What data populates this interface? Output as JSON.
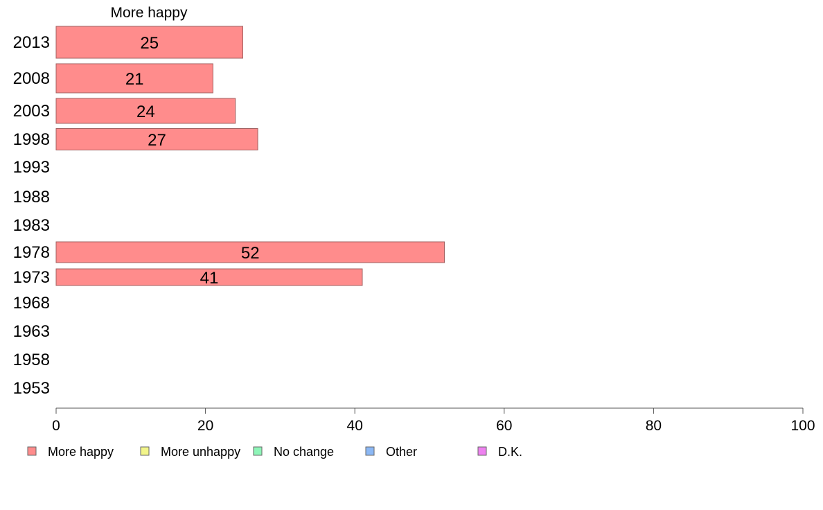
{
  "chart_data": {
    "type": "bar",
    "orientation": "horizontal",
    "series_title": "More happy",
    "categories": [
      "2013",
      "2008",
      "2003",
      "1998",
      "1993",
      "1988",
      "1983",
      "1978",
      "1973",
      "1968",
      "1963",
      "1958",
      "1953"
    ],
    "series": [
      {
        "name": "More happy",
        "values": [
          25,
          21,
          24,
          27,
          null,
          null,
          null,
          52,
          41,
          null,
          null,
          null,
          null
        ]
      }
    ],
    "data_labels": [
      "25",
      "21",
      "24",
      "27",
      "",
      "",
      "",
      "52",
      "41",
      "",
      "",
      "",
      ""
    ],
    "xlim": [
      0,
      100
    ],
    "x_ticks": [
      0,
      20,
      40,
      60,
      80,
      100
    ],
    "grid": false,
    "legend": {
      "placement": "bottom",
      "entries": [
        {
          "label": "More happy",
          "color": "#ff8c8c"
        },
        {
          "label": "More unhappy",
          "color": "#f2f58a"
        },
        {
          "label": "No change",
          "color": "#8ef5b8"
        },
        {
          "label": "Other",
          "color": "#8cb8f5"
        },
        {
          "label": "D.K.",
          "color": "#ee82f0"
        }
      ]
    },
    "colors": {
      "bar_fill": "#ff8c8c",
      "bar_stroke": "#a06060",
      "axis": "#555555"
    }
  }
}
